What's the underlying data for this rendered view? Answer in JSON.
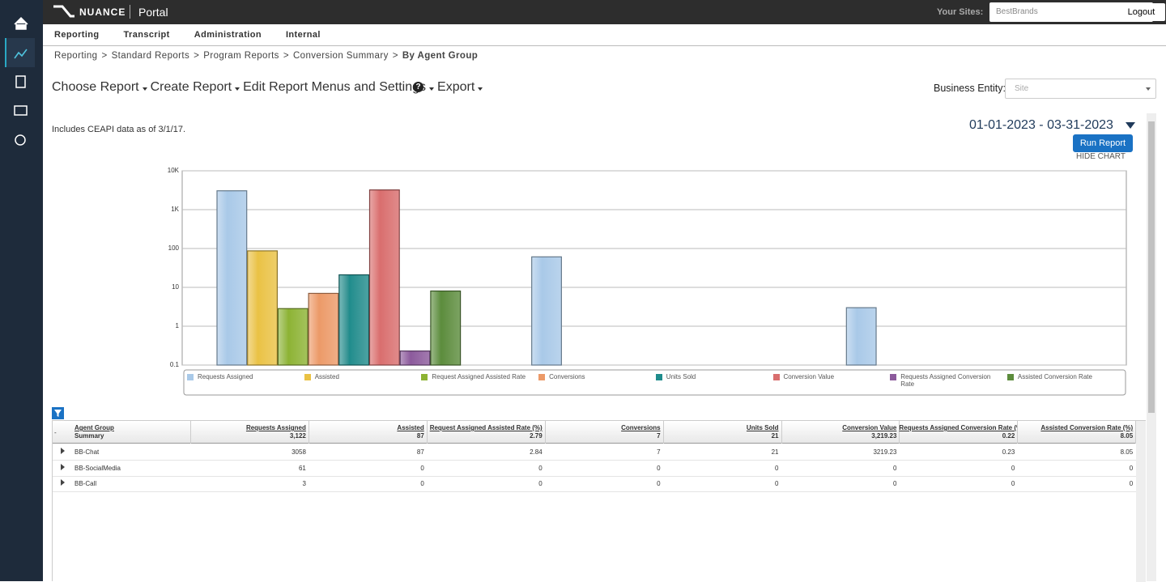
{
  "nav": {
    "logo": "NUANCE",
    "portal": "Portal",
    "sites_label": "Your Sites:",
    "site": "BestBrands",
    "logout": "Logout",
    "menu": [
      "Reporting",
      "Transcript",
      "Administration",
      "Internal"
    ]
  },
  "breadcrumb": {
    "items": [
      "Reporting",
      "Standard Reports",
      "Program Reports",
      "Conversion Summary",
      "By Agent Group"
    ],
    "separator": ">"
  },
  "toolbar": {
    "buttons": [
      "Choose Report",
      "Create Report",
      "Edit Report Menus and Settings",
      "Export"
    ],
    "help": "?",
    "entity_label": "Business Entity:",
    "entity_placeholder": "Site"
  },
  "report": {
    "note": "Includes CEAPI data as of 3/1/17.",
    "date_range": "01-01-2023 - 03-31-2023",
    "run": "Run Report",
    "hide_chart": "HIDE CHART"
  },
  "chart_data": {
    "type": "bar",
    "log": true,
    "grid": true,
    "categories": [
      null,
      null,
      null
    ],
    "ylim": [
      0.1,
      10000
    ],
    "yticks": [
      0.1,
      1,
      10,
      100,
      {
        "value": 1000,
        "label": "1K"
      },
      {
        "value": 10000,
        "label": "10K"
      }
    ],
    "series": [
      {
        "name": "Requests Assigned",
        "color": "#a9c9e8",
        "values": [
          3058,
          61,
          3
        ]
      },
      {
        "name": "Assisted",
        "color": "#eac244",
        "values": [
          87,
          0,
          0
        ]
      },
      {
        "name": "Request Assigned Assisted Rate",
        "color": "#8db333",
        "values": [
          2.84,
          0,
          0
        ]
      },
      {
        "name": "Conversions",
        "color": "#ec9a68",
        "values": [
          7,
          0,
          0
        ]
      },
      {
        "name": "Units Sold",
        "color": "#1f8c8c",
        "values": [
          21,
          0,
          0
        ]
      },
      {
        "name": "Conversion Value",
        "color": "#d96e6e",
        "values": [
          3219.23,
          0,
          0
        ]
      },
      {
        "name": "Requests Assigned Conversion Rate",
        "color": "#8c5a9c",
        "values": [
          0.23,
          0,
          0
        ]
      },
      {
        "name": "Assisted Conversion Rate",
        "color": "#5c8c3c",
        "values": [
          8.05,
          0,
          0
        ]
      }
    ]
  },
  "table": {
    "expander": "-",
    "columns": [
      {
        "title": "Agent Group",
        "summary": "Summary"
      },
      {
        "title": "Requests Assigned",
        "summary": "3,122"
      },
      {
        "title": "Assisted",
        "summary": "87"
      },
      {
        "title": "Request Assigned Assisted Rate (%)",
        "summary": "2.79"
      },
      {
        "title": "Conversions",
        "summary": "7"
      },
      {
        "title": "Units Sold",
        "summary": "21"
      },
      {
        "title": "Conversion Value",
        "summary": "3,219.23"
      },
      {
        "title": "Requests Assigned Conversion Rate (%",
        "summary": "0.22"
      },
      {
        "title": "Assisted Conversion Rate (%)",
        "summary": "8.05"
      }
    ],
    "rows": [
      [
        "BB-Chat",
        3058,
        87,
        2.84,
        7,
        21,
        3219.23,
        0.23,
        8.05
      ],
      [
        "BB-SocialMedia",
        61,
        0,
        0,
        0,
        0,
        0,
        0,
        0
      ],
      [
        "BB-Call",
        3,
        0,
        0,
        0,
        0,
        0,
        0,
        0
      ]
    ]
  }
}
